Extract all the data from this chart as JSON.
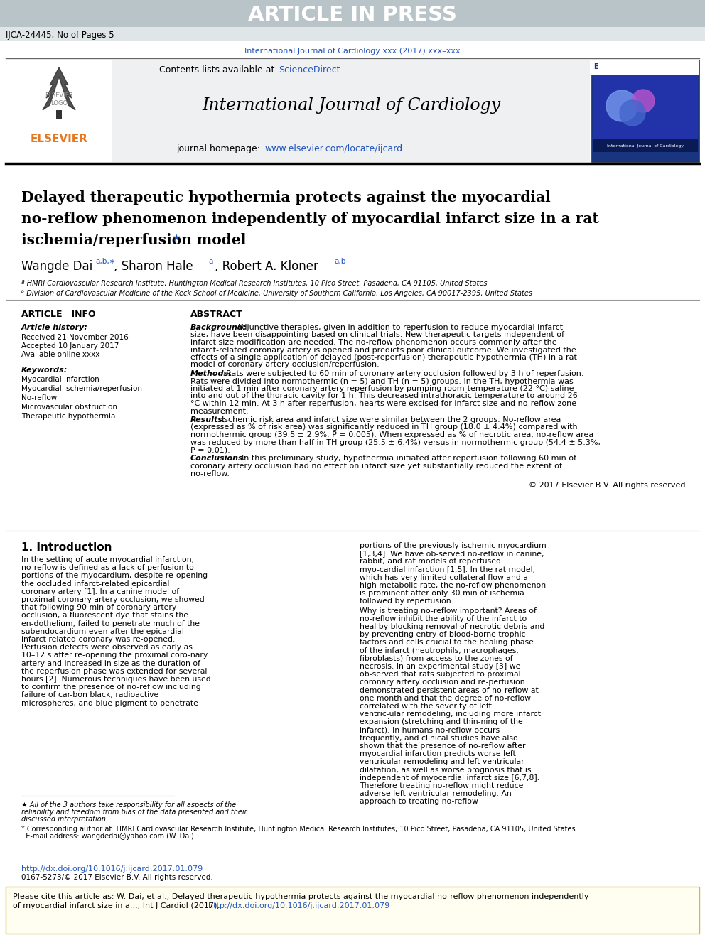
{
  "article_in_press_text": "ARTICLE IN PRESS",
  "header_ref": "IJCA-24445; No of Pages 5",
  "journal_link": "International Journal of Cardiology xxx (2017) xxx–xxx",
  "journal_name": "International Journal of Cardiology",
  "elsevier_color": "#E87722",
  "blue_link_color": "#2255BB",
  "title_main": "Delayed therapeutic hypothermia protects against the myocardial\nno-reflow phenomenon independently of myocardial infarct size in a rat\nischemia/reperfusion model",
  "affil_a": "ª HMRI Cardiovascular Research Institute, Huntington Medical Research Institutes, 10 Pico Street, Pasadena, CA 91105, United States",
  "affil_b": "ᵇ Division of Cardiovascular Medicine of the Keck School of Medicine, University of Southern California, Los Angeles, CA 90017-2395, United States",
  "article_info_title": "ARTICLE   INFO",
  "article_history_title": "Article history:",
  "received": "Received 21 November 2016",
  "accepted": "Accepted 10 January 2017",
  "available": "Available online xxxx",
  "keywords_title": "Keywords:",
  "keywords": [
    "Myocardial infarction",
    "Myocardial ischemia/reperfusion",
    "No-reflow",
    "Microvascular obstruction",
    "Therapeutic hypothermia"
  ],
  "abstract_title": "ABSTRACT",
  "abstract_background_title": "Background:",
  "abstract_background": "Adjunctive therapies, given in addition to reperfusion to reduce myocardial infarct size, have been disappointing based on clinical trials. New therapeutic targets independent of infarct size modification are needed. The no-reflow phenomenon occurs commonly after the infarct-related coronary artery is opened and predicts poor clinical outcome. We investigated the effects of a single application of delayed (post-reperfusion) therapeutic hypothermia (TH) in a rat model of coronary artery occlusion/reperfusion.",
  "abstract_methods_title": "Methods:",
  "abstract_methods": "Rats were subjected to 60 min of coronary artery occlusion followed by 3 h of reperfusion. Rats were divided into normothermic (n = 5) and TH (n = 5) groups. In the TH, hypothermia was initiated at 1 min after coronary artery reperfusion by pumping room-temperature (22 °C) saline into and out of the thoracic cavity for 1 h. This decreased intrathoracic temperature to around 26 °C within 12 min. At 3 h after reperfusion, hearts were excised for infarct size and no-reflow zone measurement.",
  "abstract_results_title": "Results:",
  "abstract_results": "Ischemic risk area and infarct size were similar between the 2 groups. No-reflow area (expressed as % of risk area) was significantly reduced in TH group (18.0 ± 4.4%) compared with normothermic group (39.5 ± 2.9%, P = 0.005). When expressed as % of necrotic area, no-reflow area was reduced by more than half in TH group (25.5 ± 6.4%) versus in normothermic group (54.4 ± 5.3%, P = 0.01).",
  "abstract_conclusions_title": "Conclusions:",
  "abstract_conclusions": "In this preliminary study, hypothermia initiated after reperfusion following 60 min of coronary artery occlusion had no effect on infarct size yet substantially reduced the extent of no-reflow.",
  "copyright": "© 2017 Elsevier B.V. All rights reserved.",
  "intro_title": "1. Introduction",
  "intro_col1": "In the setting of acute myocardial infarction, no-reflow is defined as a lack of perfusion to portions of the myocardium, despite re-opening the occluded infarct-related epicardial coronary artery [1]. In a canine model of proximal coronary artery occlusion, we showed that following 90 min of coronary artery occlusion, a fluorescent dye that stains the en-dothelium, failed to penetrate much of the subendocardium even after the epicardial infarct related coronary was re-opened. Perfusion defects were observed as early as 10–12 s after re-opening the proximal coro-nary artery and increased in size as the duration of the reperfusion phase was extended for several hours [2]. Numerous techniques have been used to confirm the presence of no-reflow including failure of car-bon black, radioactive microspheres, and blue pigment to penetrate",
  "intro_col2": "portions of the previously ischemic myocardium [1,3,4]. We have ob-served no-reflow in canine, rabbit, and rat models of reperfused myo-cardial infarction [1,5]. In the rat model, which has very limited collateral flow and a high metabolic rate, the no-reflow phenomenon is prominent after only 30 min of ischemia followed by reperfusion.\n    Why is treating no-reflow important? Areas of no-reflow inhibit the ability of the infarct to heal by blocking removal of necrotic debris and by preventing entry of blood-borne trophic factors and cells crucial to the healing phase of the infarct (neutrophils, macrophages, fibroblasts) from access to the zones of necrosis. In an experimental study [3] we ob-served that rats subjected to proximal coronary artery occlusion and re-perfusion demonstrated persistent areas of no-reflow at one month and that the degree of no-reflow correlated with the severity of left ventric-ular remodeling, including more infarct expansion (stretching and thin-ning of the infarct). In humans no-reflow occurs frequently, and clinical studies have also shown that the presence of no-reflow after myocardial infarction predicts worse left ventricular remodeling and left ventricular dilatation, as well as worse prognosis that is independent of myocardial infarct size [6,7,8]. Therefore treating no-reflow might reduce adverse left ventricular remodeling. An approach to treating no-reflow",
  "footnote_star": "★ All of the 3 authors take responsibility for all aspects of the reliability and freedom from bias of the data presented and their discussed interpretation.",
  "footnote_corresp_1": "* Corresponding author at: HMRI Cardiovascular Research Institute, Huntington Medical Research Institutes, 10 Pico Street, Pasadena, CA 91105, United States.",
  "footnote_corresp_2": "  E-mail address: wangdedai@yahoo.com (W. Dai).",
  "doi_text": "http://dx.doi.org/10.1016/j.ijcard.2017.01.079",
  "issn_text": "0167-5273/© 2017 Elsevier B.V. All rights reserved.",
  "cite_box_1": "Please cite this article as: W. Dai, et al., Delayed therapeutic hypothermia protects against the myocardial no-reflow phenomenon independently",
  "cite_box_2": "of myocardial infarct size in a..., Int J Cardiol (2017), http://dx.doi.org/10.1016/j.ijcard.2017.01.079",
  "bg_color": "#ffffff",
  "light_gray_bg": "#e0e6e8",
  "header_area_bg": "#b8c4c8"
}
